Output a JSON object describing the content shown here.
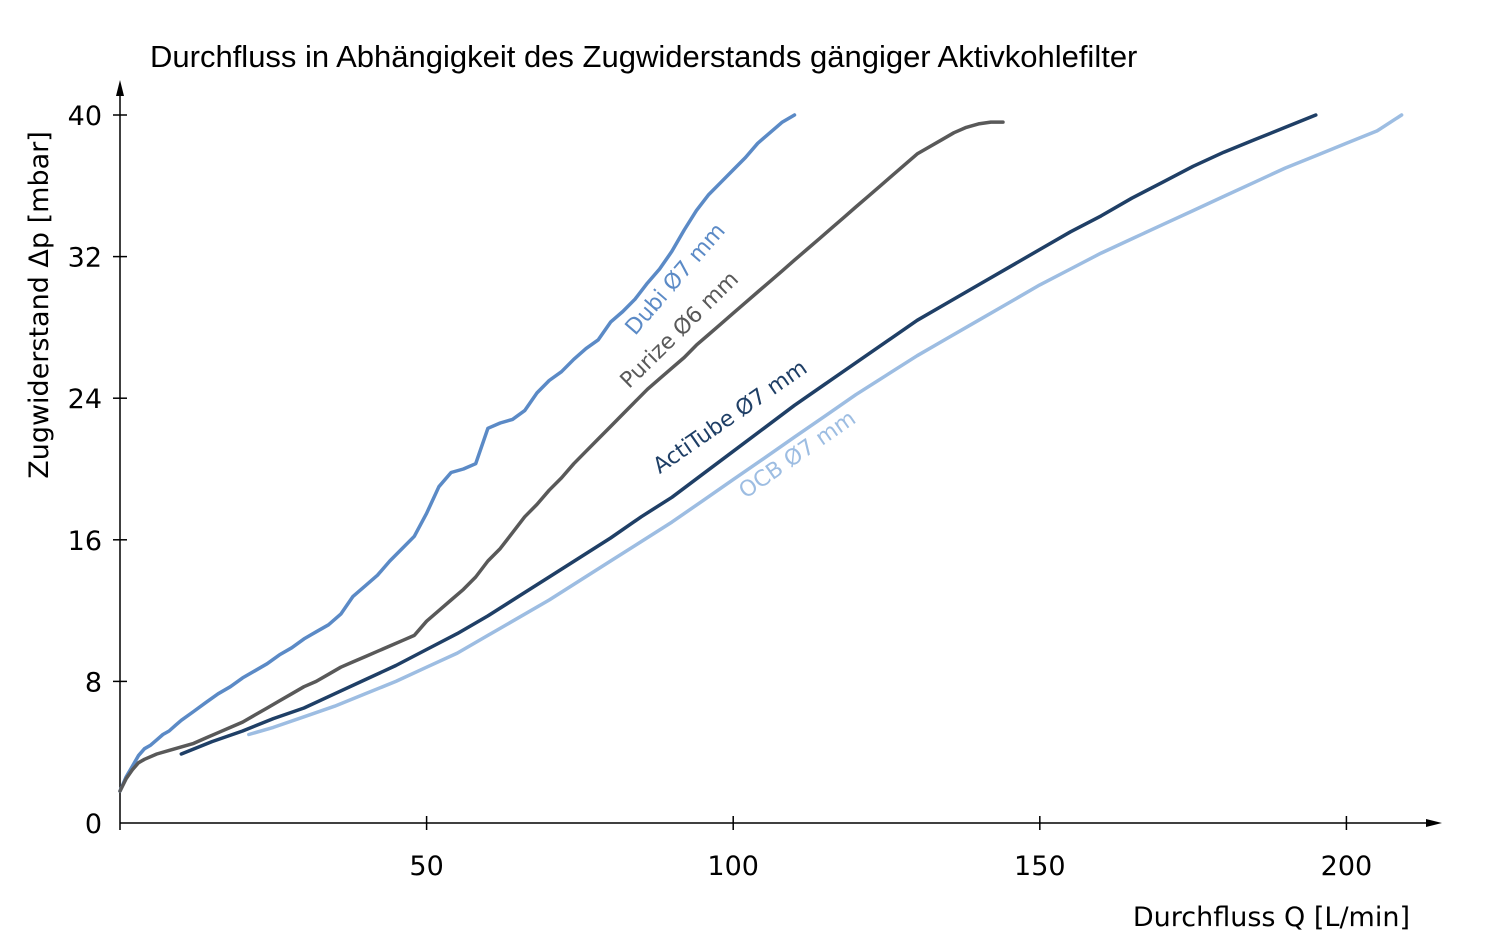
{
  "chart_data": {
    "type": "line",
    "title": "Durchfluss in Abhängigkeit des Zugwiderstands gängiger Aktivkohlefilter",
    "xlabel": "Durchfluss Q [L/min]",
    "ylabel": "Zugwiderstand Δp [mbar]",
    "xlim": [
      0,
      212
    ],
    "ylim": [
      0,
      40
    ],
    "xticks": [
      50,
      100,
      150,
      200
    ],
    "yticks": [
      0,
      8,
      16,
      24,
      32,
      40
    ],
    "grid": false,
    "series": [
      {
        "name": "Dubi Ø7 mm",
        "color": "#5b8ac6",
        "x": [
          0,
          1,
          2,
          3,
          4,
          5,
          6,
          7,
          8,
          9,
          10,
          12,
          14,
          16,
          18,
          20,
          22,
          24,
          26,
          28,
          30,
          32,
          34,
          36,
          38,
          40,
          42,
          44,
          46,
          48,
          50,
          52,
          54,
          56,
          58,
          60,
          62,
          64,
          66,
          68,
          70,
          72,
          74,
          76,
          78,
          80,
          82,
          84,
          86,
          88,
          90,
          92,
          94,
          96,
          98,
          100,
          102,
          104,
          106,
          108,
          110
        ],
        "y": [
          1.8,
          2.6,
          3.2,
          3.8,
          4.2,
          4.4,
          4.7,
          5.0,
          5.2,
          5.5,
          5.8,
          6.3,
          6.8,
          7.3,
          7.7,
          8.2,
          8.6,
          9.0,
          9.5,
          9.9,
          10.4,
          10.8,
          11.2,
          11.8,
          12.8,
          13.4,
          14.0,
          14.8,
          15.5,
          16.2,
          17.5,
          19.0,
          19.8,
          20.0,
          20.3,
          22.3,
          22.6,
          22.8,
          23.3,
          24.3,
          25.0,
          25.5,
          26.2,
          26.8,
          27.3,
          28.3,
          28.9,
          29.6,
          30.5,
          31.3,
          32.3,
          33.5,
          34.6,
          35.5,
          36.2,
          36.9,
          37.6,
          38.4,
          39.0,
          39.6,
          40.0
        ]
      },
      {
        "name": "Purize Ø6 mm",
        "color": "#595959",
        "x": [
          0,
          1,
          2,
          3,
          4,
          6,
          8,
          10,
          12,
          14,
          16,
          18,
          20,
          22,
          24,
          26,
          28,
          30,
          32,
          34,
          36,
          38,
          40,
          42,
          44,
          46,
          48,
          50,
          52,
          54,
          56,
          58,
          60,
          62,
          64,
          66,
          68,
          70,
          72,
          74,
          76,
          78,
          80,
          82,
          84,
          86,
          88,
          90,
          92,
          94,
          96,
          98,
          100,
          102,
          104,
          106,
          108,
          110,
          112,
          114,
          116,
          118,
          120,
          122,
          124,
          126,
          128,
          130,
          132,
          134,
          136,
          138,
          140,
          142,
          144
        ],
        "y": [
          1.8,
          2.5,
          3.0,
          3.4,
          3.6,
          3.9,
          4.1,
          4.3,
          4.5,
          4.8,
          5.1,
          5.4,
          5.7,
          6.1,
          6.5,
          6.9,
          7.3,
          7.7,
          8.0,
          8.4,
          8.8,
          9.1,
          9.4,
          9.7,
          10.0,
          10.3,
          10.6,
          11.4,
          12.0,
          12.6,
          13.2,
          13.9,
          14.8,
          15.5,
          16.4,
          17.3,
          18.0,
          18.8,
          19.5,
          20.3,
          21.0,
          21.7,
          22.4,
          23.1,
          23.8,
          24.5,
          25.1,
          25.7,
          26.3,
          27.0,
          27.6,
          28.2,
          28.8,
          29.4,
          30.0,
          30.6,
          31.2,
          31.8,
          32.4,
          33.0,
          33.6,
          34.2,
          34.8,
          35.4,
          36.0,
          36.6,
          37.2,
          37.8,
          38.2,
          38.6,
          39.0,
          39.3,
          39.5,
          39.6,
          39.6
        ]
      },
      {
        "name": "ActiTube Ø7 mm",
        "color": "#1f3f66",
        "x": [
          10,
          15,
          20,
          25,
          30,
          35,
          40,
          45,
          50,
          55,
          60,
          65,
          70,
          75,
          80,
          85,
          90,
          95,
          100,
          105,
          110,
          115,
          120,
          125,
          130,
          135,
          140,
          145,
          150,
          155,
          160,
          165,
          170,
          175,
          180,
          185,
          190,
          195
        ],
        "y": [
          3.9,
          4.6,
          5.2,
          5.9,
          6.5,
          7.3,
          8.1,
          8.9,
          9.8,
          10.7,
          11.7,
          12.8,
          13.9,
          15.0,
          16.1,
          17.3,
          18.4,
          19.7,
          21.0,
          22.3,
          23.6,
          24.8,
          26.0,
          27.2,
          28.4,
          29.4,
          30.4,
          31.4,
          32.4,
          33.4,
          34.3,
          35.3,
          36.2,
          37.1,
          37.9,
          38.6,
          39.3,
          40.0
        ]
      },
      {
        "name": "OCB Ø7 mm",
        "color": "#9dbde2",
        "x": [
          21,
          25,
          30,
          35,
          40,
          45,
          50,
          55,
          60,
          65,
          70,
          75,
          80,
          85,
          90,
          95,
          100,
          105,
          110,
          115,
          120,
          125,
          130,
          135,
          140,
          145,
          150,
          155,
          160,
          165,
          170,
          175,
          180,
          185,
          190,
          195,
          200,
          205,
          209
        ],
        "y": [
          5.0,
          5.4,
          6.0,
          6.6,
          7.3,
          8.0,
          8.8,
          9.6,
          10.6,
          11.6,
          12.6,
          13.7,
          14.8,
          15.9,
          17.0,
          18.2,
          19.4,
          20.6,
          21.8,
          23.0,
          24.2,
          25.3,
          26.4,
          27.4,
          28.4,
          29.4,
          30.4,
          31.3,
          32.2,
          33.0,
          33.8,
          34.6,
          35.4,
          36.2,
          37.0,
          37.7,
          38.4,
          39.1,
          40.0
        ]
      }
    ],
    "annotations": [
      {
        "series": 0,
        "text": "Dubi Ø7 mm",
        "at_x": 84,
        "at_y": 27.5
      },
      {
        "series": 1,
        "text": "Purize Ø6 mm",
        "at_x": 83,
        "at_y": 24.5
      },
      {
        "series": 2,
        "text": "ActiTube Ø7 mm",
        "at_x": 88,
        "at_y": 19.7
      },
      {
        "series": 3,
        "text": "OCB Ø7 mm",
        "at_x": 102,
        "at_y": 18.3
      }
    ]
  }
}
